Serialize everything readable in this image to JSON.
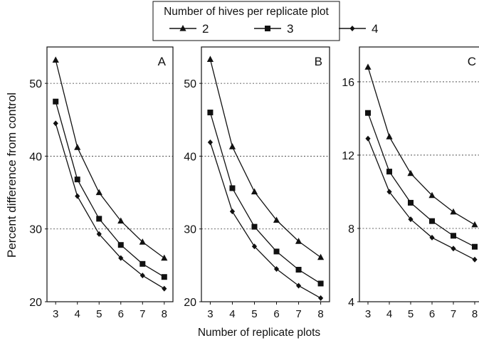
{
  "legend": {
    "title": "Number of hives per replicate plot",
    "placement": "top-center",
    "entries": [
      {
        "label": "2",
        "marker": "triangle"
      },
      {
        "label": "3",
        "marker": "square"
      },
      {
        "label": "4",
        "marker": "diamond"
      }
    ]
  },
  "shared_xlabel": "Number of replicate plots",
  "shared_ylabel": "Percent difference from control",
  "colors": {
    "ink": "#111111",
    "grid": "#333333",
    "background": "#ffffff"
  },
  "chart_data": [
    {
      "type": "line",
      "panel_label": "A",
      "x": [
        3,
        4,
        5,
        6,
        7,
        8
      ],
      "xlim": [
        2.6,
        8.4
      ],
      "ylim": [
        20,
        55
      ],
      "yticks": [
        20,
        30,
        40,
        50
      ],
      "xticks": [
        3,
        4,
        5,
        6,
        7,
        8
      ],
      "grid": "horizontal dotted at y ticks",
      "series": [
        {
          "name": "2",
          "marker": "triangle",
          "values": [
            53.2,
            41.2,
            35.0,
            31.1,
            28.2,
            26.0
          ]
        },
        {
          "name": "3",
          "marker": "square",
          "values": [
            47.5,
            36.8,
            31.4,
            27.8,
            25.2,
            23.4
          ]
        },
        {
          "name": "4",
          "marker": "diamond",
          "values": [
            44.5,
            34.5,
            29.3,
            26.0,
            23.6,
            21.8
          ]
        }
      ]
    },
    {
      "type": "line",
      "panel_label": "B",
      "x": [
        3,
        4,
        5,
        6,
        7,
        8
      ],
      "xlim": [
        2.6,
        8.4
      ],
      "ylim": [
        20,
        55
      ],
      "yticks": [
        20,
        30,
        40,
        50
      ],
      "xticks": [
        3,
        4,
        5,
        6,
        7,
        8
      ],
      "grid": "horizontal dotted at y ticks",
      "series": [
        {
          "name": "2",
          "marker": "triangle",
          "values": [
            53.3,
            41.3,
            35.1,
            31.2,
            28.3,
            26.1
          ]
        },
        {
          "name": "3",
          "marker": "square",
          "values": [
            46.0,
            35.6,
            30.3,
            26.9,
            24.4,
            22.5
          ]
        },
        {
          "name": "4",
          "marker": "diamond",
          "values": [
            41.9,
            32.4,
            27.6,
            24.5,
            22.2,
            20.5
          ]
        }
      ]
    },
    {
      "type": "line",
      "panel_label": "C",
      "x": [
        3,
        4,
        5,
        6,
        7,
        8
      ],
      "xlim": [
        2.6,
        8.4
      ],
      "ylim": [
        4,
        17.9
      ],
      "yticks": [
        4,
        8,
        12,
        16
      ],
      "xticks": [
        3,
        4,
        5,
        6,
        7,
        8
      ],
      "grid": "horizontal dotted at y ticks",
      "series": [
        {
          "name": "2",
          "marker": "triangle",
          "values": [
            16.8,
            13.0,
            11.0,
            9.8,
            8.9,
            8.2
          ]
        },
        {
          "name": "3",
          "marker": "square",
          "values": [
            14.3,
            11.1,
            9.4,
            8.4,
            7.6,
            7.0
          ]
        },
        {
          "name": "4",
          "marker": "diamond",
          "values": [
            12.9,
            10.0,
            8.5,
            7.5,
            6.9,
            6.3
          ]
        }
      ]
    }
  ]
}
